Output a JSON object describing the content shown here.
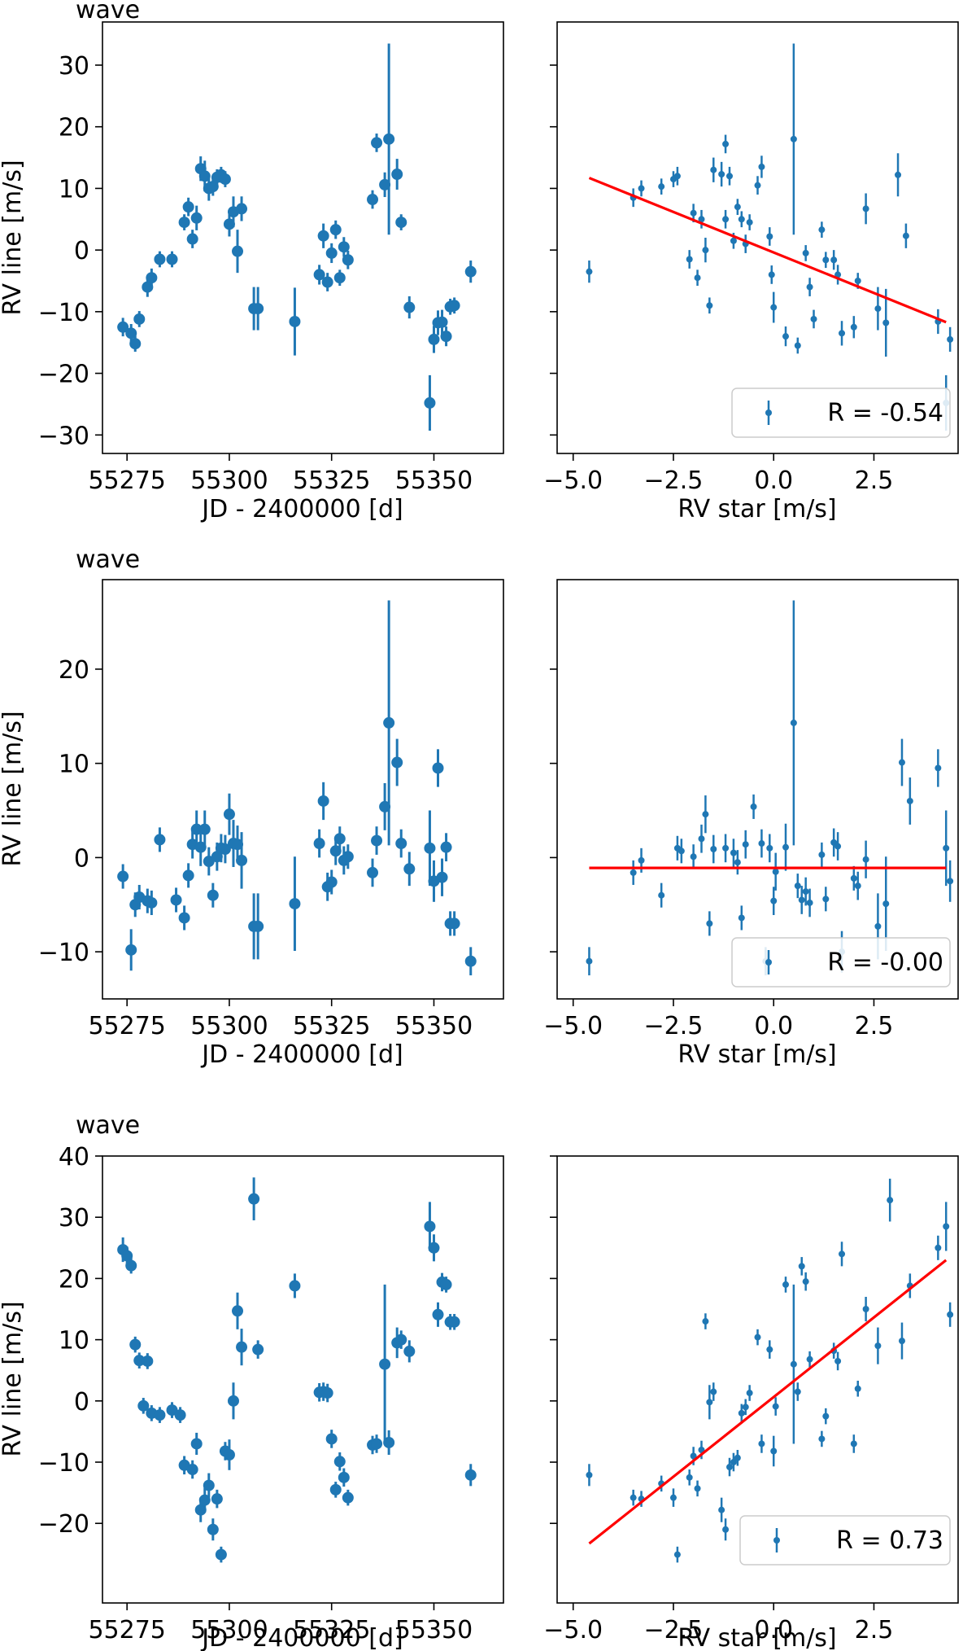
{
  "colors": {
    "points": "#1f77b4",
    "fit": "#ff0000",
    "axes": "#000000",
    "legend_border": "#cccccc"
  },
  "chart_data": [
    {
      "title": "wave",
      "left": {
        "type": "scatter",
        "xlabel": "JD - 2400000 [d]",
        "ylabel": "RV line [m/s]",
        "xlim": [
          55269,
          55367
        ],
        "ylim": [
          -33,
          37
        ],
        "xticks": [
          55275,
          55300,
          55325,
          55350
        ],
        "yticks": [
          -30,
          -20,
          -10,
          0,
          10,
          20,
          30
        ],
        "x": [
          55274,
          55276,
          55277,
          55278,
          55280,
          55281,
          55283,
          55286,
          55289,
          55290,
          55291,
          55292,
          55293,
          55294,
          55295,
          55296,
          55297,
          55298,
          55299,
          55300,
          55301,
          55302,
          55303,
          55306,
          55307,
          55316,
          55322,
          55323,
          55324,
          55325,
          55326,
          55327,
          55328,
          55329,
          55335,
          55336,
          55338,
          55339,
          55341,
          55342,
          55344,
          55349,
          55350,
          55351,
          55352,
          55353,
          55354,
          55355,
          55359
        ],
        "y": [
          -12.5,
          -13.5,
          -15.2,
          -11.2,
          -6.0,
          -4.5,
          -1.5,
          -1.5,
          4.5,
          7.0,
          1.8,
          5.2,
          13.2,
          12.0,
          10.0,
          10.3,
          11.8,
          12.2,
          11.5,
          4.2,
          6.2,
          -0.2,
          6.7,
          -9.5,
          -9.5,
          -11.6,
          -4.0,
          2.3,
          -5.2,
          -0.5,
          3.3,
          -4.5,
          0.5,
          -1.6,
          8.2,
          17.4,
          10.6,
          18.0,
          12.3,
          4.5,
          -9.3,
          -24.8,
          -14.5,
          -11.8,
          -11.7,
          -14.0,
          -9.2,
          -9.0,
          -3.5
        ],
        "err": [
          1.5,
          1.5,
          1.3,
          1.3,
          1.6,
          1.5,
          1.3,
          1.3,
          1.3,
          1.5,
          1.5,
          2.0,
          2.0,
          2.5,
          2.0,
          1.5,
          1.3,
          1.3,
          1.3,
          2.0,
          2.5,
          3.5,
          2.0,
          3.5,
          3.5,
          5.5,
          1.6,
          2.0,
          1.5,
          1.6,
          1.5,
          1.3,
          1.6,
          1.5,
          1.5,
          1.5,
          2.0,
          15.5,
          2.5,
          1.3,
          1.8,
          4.5,
          2.2,
          2.0,
          2.0,
          1.6,
          1.3,
          1.3,
          1.8
        ]
      },
      "right": {
        "type": "scatter",
        "xlabel": "RV star [m/s]",
        "xlim": [
          -5.4,
          4.6
        ],
        "ylim": [
          -33,
          37
        ],
        "xticks": [
          -5.0,
          -2.5,
          0.0,
          2.5
        ],
        "xtick_labels": [
          "−5.0",
          "−2.5",
          "0.0",
          "2.5"
        ],
        "x": [
          -4.6,
          -3.5,
          -3.3,
          -2.8,
          -2.5,
          -2.4,
          -2.1,
          -2.0,
          -1.9,
          -1.8,
          -1.7,
          -1.6,
          -1.5,
          -1.3,
          -1.2,
          -1.2,
          -1.1,
          -1.0,
          -0.9,
          -0.8,
          -0.7,
          -0.6,
          -0.4,
          -0.3,
          -0.1,
          -0.05,
          0.0,
          0.3,
          0.5,
          0.6,
          0.8,
          0.9,
          1.0,
          1.2,
          1.3,
          1.5,
          1.6,
          1.7,
          2.0,
          2.1,
          2.3,
          2.6,
          2.8,
          3.1,
          3.3,
          4.1,
          4.3,
          4.4
        ],
        "y": [
          -3.5,
          8.5,
          10.0,
          10.3,
          11.5,
          12.0,
          -1.5,
          6.0,
          -4.5,
          5.0,
          0.0,
          -9.0,
          13.0,
          12.3,
          17.2,
          5.0,
          12.0,
          1.5,
          7.0,
          5.0,
          1.0,
          4.5,
          10.5,
          13.5,
          2.2,
          -4.0,
          -9.3,
          -14.0,
          18.0,
          -15.5,
          -0.5,
          -6.0,
          -11.2,
          3.3,
          -1.6,
          -1.6,
          -4.0,
          -13.5,
          -12.5,
          -5.0,
          6.7,
          -9.5,
          -11.8,
          12.2,
          2.3,
          -11.6,
          -24.8,
          -14.5
        ],
        "err": [
          1.8,
          1.5,
          1.3,
          1.3,
          1.3,
          1.5,
          1.5,
          1.5,
          1.3,
          1.5,
          2.0,
          1.3,
          2.0,
          2.0,
          1.5,
          1.5,
          1.5,
          1.3,
          1.3,
          1.3,
          1.5,
          1.3,
          1.5,
          1.8,
          1.5,
          1.5,
          2.5,
          1.6,
          15.5,
          1.3,
          1.3,
          1.5,
          1.5,
          1.3,
          1.3,
          1.6,
          1.6,
          2.0,
          1.8,
          1.3,
          2.5,
          3.5,
          5.5,
          3.5,
          2.0,
          2.0,
          4.5,
          2.0
        ],
        "fit": {
          "x": [
            -4.6,
            4.3
          ],
          "y": [
            11.7,
            -11.7
          ]
        },
        "legend_label": "R = -0.54"
      }
    },
    {
      "title": "wave",
      "left": {
        "type": "scatter",
        "xlabel": "JD - 2400000 [d]",
        "ylabel": "RV line [m/s]",
        "xlim": [
          55269,
          55367
        ],
        "ylim": [
          -15,
          29.5
        ],
        "xticks": [
          55275,
          55300,
          55325,
          55350
        ],
        "yticks": [
          -10,
          0,
          10,
          20
        ],
        "x": [
          55274,
          55276,
          55277,
          55278,
          55280,
          55281,
          55283,
          55287,
          55289,
          55290,
          55291,
          55292,
          55293,
          55294,
          55295,
          55296,
          55297,
          55298,
          55299,
          55300,
          55301,
          55302,
          55303,
          55306,
          55307,
          55316,
          55322,
          55323,
          55324,
          55325,
          55326,
          55327,
          55328,
          55329,
          55335,
          55336,
          55338,
          55339,
          55341,
          55342,
          55344,
          55349,
          55350,
          55351,
          55352,
          55353,
          55354,
          55355,
          55359
        ],
        "y": [
          -2.0,
          -9.8,
          -5.0,
          -4.2,
          -4.6,
          -4.8,
          1.9,
          -4.5,
          -6.4,
          -1.9,
          1.4,
          3.0,
          1.1,
          3.0,
          -0.4,
          -4.0,
          0.1,
          1.0,
          0.9,
          4.6,
          1.5,
          1.4,
          -0.3,
          -7.3,
          -7.3,
          -4.9,
          1.5,
          6.0,
          -3.1,
          -2.6,
          0.7,
          2.0,
          -0.3,
          0.1,
          -1.6,
          1.8,
          5.4,
          14.3,
          10.1,
          1.5,
          -1.2,
          1.0,
          -2.5,
          9.5,
          -2.1,
          1.1,
          -7.0,
          -7.0,
          -11.0
        ],
        "err": [
          1.3,
          2.2,
          1.3,
          1.3,
          1.3,
          1.3,
          1.3,
          1.3,
          1.3,
          1.3,
          1.5,
          2.0,
          2.0,
          2.0,
          1.5,
          1.3,
          1.5,
          1.5,
          1.5,
          2.2,
          2.5,
          2.0,
          3.0,
          3.5,
          3.5,
          5.0,
          1.5,
          2.0,
          1.5,
          1.3,
          1.5,
          1.3,
          1.5,
          1.3,
          1.5,
          1.5,
          2.5,
          13.0,
          2.5,
          1.5,
          1.8,
          4.0,
          2.2,
          2.0,
          2.0,
          1.5,
          1.3,
          1.3,
          1.5
        ]
      },
      "right": {
        "type": "scatter",
        "xlabel": "RV star [m/s]",
        "xlim": [
          -5.4,
          4.6
        ],
        "ylim": [
          -15,
          29.5
        ],
        "xticks": [
          -5.0,
          -2.5,
          0.0,
          2.5
        ],
        "xtick_labels": [
          "−5.0",
          "−2.5",
          "0.0",
          "2.5"
        ],
        "x": [
          -4.6,
          -3.5,
          -3.3,
          -2.8,
          -2.4,
          -2.3,
          -2.0,
          -1.8,
          -1.7,
          -1.6,
          -1.5,
          -1.2,
          -1.0,
          -0.9,
          -0.8,
          -0.7,
          -0.5,
          -0.3,
          -0.2,
          -0.1,
          0.0,
          0.05,
          0.3,
          0.5,
          0.6,
          0.7,
          0.8,
          0.9,
          1.2,
          1.3,
          1.5,
          1.6,
          1.7,
          2.0,
          2.1,
          2.3,
          2.6,
          2.8,
          3.2,
          3.4,
          4.1,
          4.3,
          4.4
        ],
        "y": [
          -11.0,
          -1.6,
          -0.3,
          -4.0,
          1.0,
          0.7,
          0.1,
          2.0,
          4.6,
          -7.0,
          0.9,
          1.0,
          0.5,
          -0.5,
          -6.4,
          1.4,
          5.4,
          1.5,
          -11.0,
          1.0,
          -4.6,
          -1.5,
          1.1,
          14.3,
          -3.0,
          -4.5,
          -3.6,
          -4.8,
          0.3,
          -4.4,
          1.6,
          1.2,
          -10.0,
          -2.2,
          -3.0,
          -0.2,
          -7.3,
          -4.9,
          10.1,
          6.0,
          9.5,
          1.0,
          -2.5
        ],
        "err": [
          1.5,
          1.3,
          1.3,
          1.3,
          1.3,
          1.3,
          1.3,
          1.5,
          2.0,
          1.3,
          1.5,
          1.5,
          1.5,
          1.3,
          1.3,
          1.5,
          1.3,
          1.5,
          1.5,
          1.5,
          1.5,
          2.0,
          2.5,
          13.0,
          1.3,
          1.5,
          1.5,
          1.5,
          1.3,
          1.3,
          1.5,
          1.5,
          2.2,
          1.3,
          1.5,
          2.0,
          3.5,
          5.0,
          2.5,
          2.5,
          2.0,
          4.0,
          2.2
        ],
        "fit": {
          "x": [
            -4.6,
            4.3
          ],
          "y": [
            -1.1,
            -1.1
          ]
        },
        "legend_label": "R = -0.00"
      }
    },
    {
      "title": "wave",
      "left": {
        "type": "scatter",
        "xlabel": "JD - 2400000 [d]",
        "ylabel": "RV line [m/s]",
        "xlim": [
          55269,
          55367
        ],
        "ylim": [
          -33,
          40
        ],
        "xticks": [
          55275,
          55300,
          55325,
          55350
        ],
        "yticks": [
          -20,
          -10,
          0,
          10,
          20,
          30,
          40
        ],
        "x": [
          55274,
          55275,
          55276,
          55277,
          55278,
          55279,
          55280,
          55281,
          55283,
          55286,
          55288,
          55289,
          55291,
          55292,
          55293,
          55294,
          55295,
          55296,
          55297,
          55298,
          55299,
          55300,
          55301,
          55302,
          55303,
          55306,
          55307,
          55316,
          55322,
          55323,
          55324,
          55325,
          55326,
          55327,
          55328,
          55329,
          55335,
          55336,
          55338,
          55339,
          55341,
          55342,
          55344,
          55349,
          55350,
          55351,
          55352,
          55353,
          55354,
          55355,
          55359
        ],
        "y": [
          24.7,
          23.7,
          22.1,
          9.2,
          6.6,
          -0.8,
          6.5,
          -2.0,
          -2.3,
          -1.5,
          -2.3,
          -10.5,
          -11.2,
          -7.0,
          -17.8,
          -16.2,
          -13.8,
          -21.0,
          -16.0,
          -25.1,
          -8.2,
          -8.8,
          0.0,
          14.7,
          8.8,
          33.0,
          8.4,
          18.8,
          1.4,
          1.5,
          1.3,
          -6.2,
          -14.5,
          -9.9,
          -12.5,
          -15.8,
          -7.2,
          -7.0,
          6.0,
          -6.8,
          9.5,
          10.0,
          8.1,
          28.5,
          25.0,
          14.1,
          19.4,
          19.0,
          12.9,
          12.9,
          -12.1
        ],
        "err": [
          2.0,
          1.5,
          1.3,
          1.3,
          1.3,
          1.3,
          1.3,
          1.3,
          1.3,
          1.3,
          1.3,
          1.5,
          1.5,
          1.8,
          2.0,
          2.0,
          2.0,
          1.8,
          1.5,
          1.3,
          1.5,
          2.5,
          3.0,
          3.0,
          3.0,
          3.5,
          1.5,
          2.0,
          1.5,
          1.5,
          1.5,
          1.5,
          1.3,
          1.5,
          1.5,
          1.3,
          1.5,
          1.5,
          13.0,
          2.0,
          2.5,
          1.5,
          1.8,
          4.0,
          2.2,
          2.0,
          1.5,
          1.3,
          1.3,
          1.3,
          1.8
        ]
      },
      "right": {
        "type": "scatter",
        "xlabel": "RV star [m/s]",
        "xlim": [
          -5.4,
          4.6
        ],
        "ylim": [
          -33,
          40
        ],
        "xticks": [
          -5.0,
          -2.5,
          0.0,
          2.5
        ],
        "xtick_labels": [
          "−5.0",
          "−2.5",
          "0.0",
          "2.5"
        ],
        "x": [
          -4.6,
          -3.5,
          -3.3,
          -2.8,
          -2.5,
          -2.4,
          -2.1,
          -2.0,
          -1.9,
          -1.8,
          -1.7,
          -1.6,
          -1.5,
          -1.3,
          -1.2,
          -1.1,
          -1.0,
          -0.9,
          -0.8,
          -0.7,
          -0.6,
          -0.4,
          -0.3,
          -0.1,
          0.0,
          0.05,
          0.3,
          0.5,
          0.6,
          0.7,
          0.8,
          0.9,
          1.2,
          1.3,
          1.5,
          1.6,
          1.7,
          2.0,
          2.1,
          2.3,
          2.6,
          2.9,
          3.2,
          3.4,
          4.1,
          4.3,
          4.4
        ],
        "y": [
          -12.1,
          -15.8,
          -16.0,
          -13.5,
          -15.8,
          -25.1,
          -12.5,
          -9.0,
          -14.3,
          -8.0,
          13.0,
          -0.2,
          1.5,
          -17.8,
          -21.0,
          -10.8,
          -10.0,
          -9.3,
          -2.0,
          -1.0,
          1.3,
          10.4,
          -7.0,
          8.4,
          -8.2,
          -0.9,
          19.0,
          6.0,
          1.5,
          22.0,
          19.5,
          6.8,
          -6.2,
          -2.5,
          8.2,
          6.5,
          24.0,
          -7.0,
          2.0,
          15.0,
          9.0,
          32.8,
          9.8,
          18.8,
          25.0,
          28.5,
          14.1
        ],
        "err": [
          1.8,
          1.3,
          1.3,
          1.3,
          1.5,
          1.3,
          1.3,
          1.5,
          1.3,
          1.5,
          1.3,
          2.8,
          1.5,
          2.0,
          1.8,
          1.5,
          1.5,
          1.3,
          1.5,
          1.3,
          1.3,
          1.3,
          1.5,
          1.5,
          2.5,
          1.5,
          1.3,
          13.0,
          1.5,
          1.5,
          1.5,
          1.3,
          1.3,
          1.3,
          1.3,
          1.5,
          2.0,
          1.5,
          1.3,
          2.0,
          3.0,
          3.5,
          3.0,
          2.0,
          2.0,
          4.0,
          2.0
        ],
        "fit": {
          "x": [
            -4.6,
            4.3
          ],
          "y": [
            -23.3,
            23.0
          ]
        },
        "legend_label": "R = 0.73"
      }
    }
  ]
}
